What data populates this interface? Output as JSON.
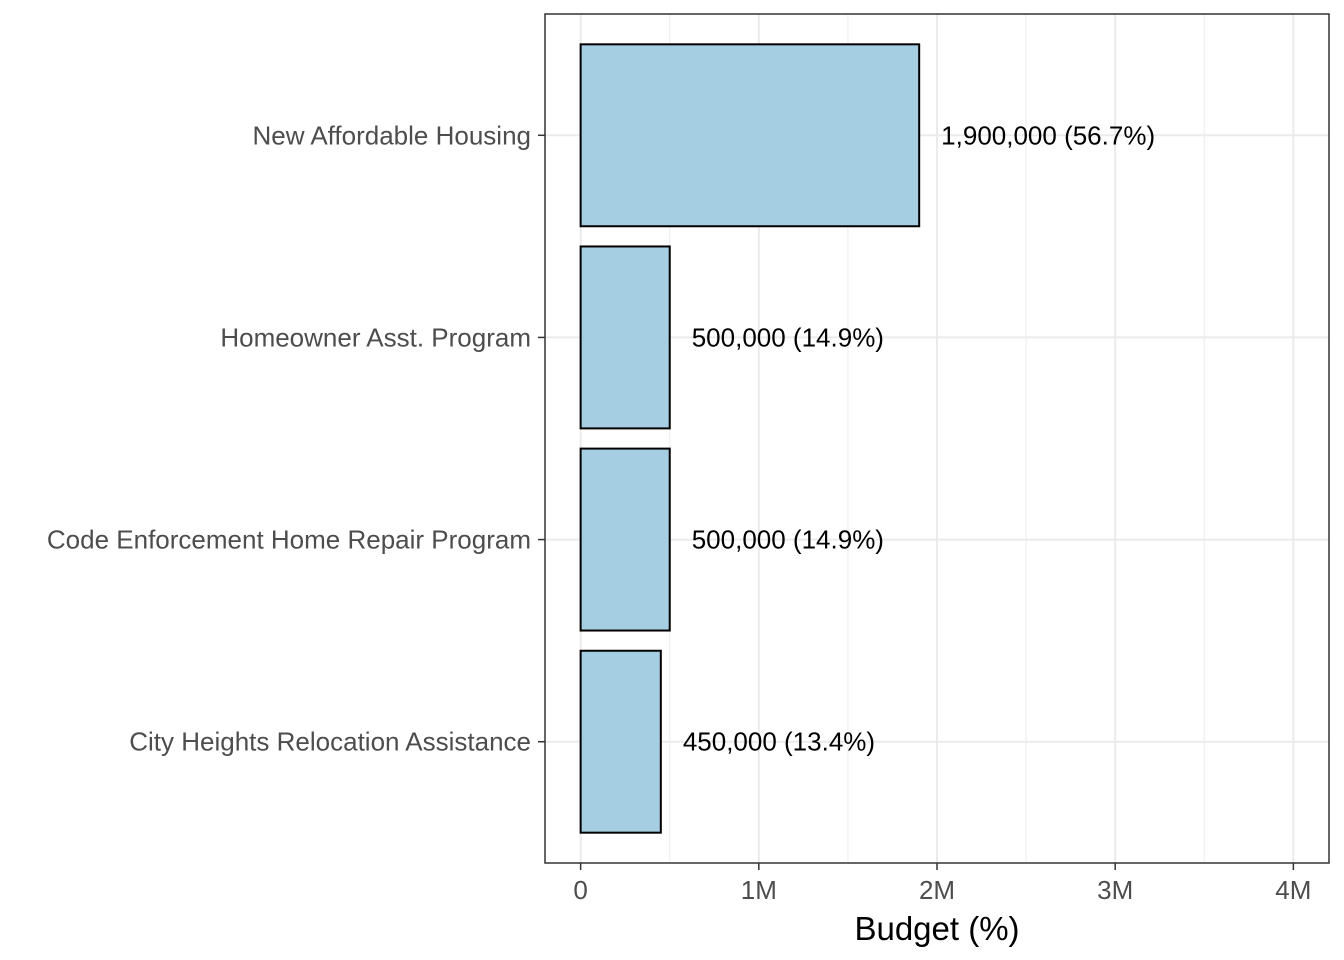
{
  "chart_data": {
    "type": "bar",
    "orientation": "horizontal",
    "categories": [
      "New Affordable Housing",
      "Homeowner Asst. Program",
      "Code Enforcement Home Repair Program",
      "City Heights Relocation Assistance"
    ],
    "values": [
      1900000,
      500000,
      500000,
      450000
    ],
    "data_labels": [
      "1,900,000 (56.7%)",
      "500,000 (14.9%)",
      "500,000 (14.9%)",
      "450,000 (13.4%)"
    ],
    "xlabel": "Budget (%)",
    "ylabel": "",
    "xlim": [
      -200000,
      4200000
    ],
    "x_ticks": [
      0,
      1000000,
      2000000,
      3000000,
      4000000
    ],
    "x_tick_labels": [
      "0",
      "1M",
      "2M",
      "3M",
      "4M"
    ],
    "grid": true,
    "colors": {
      "bar_fill": "#a6cee3",
      "bar_stroke": "#000000",
      "grid": "#ebebeb",
      "panel_border": "#333333"
    }
  }
}
